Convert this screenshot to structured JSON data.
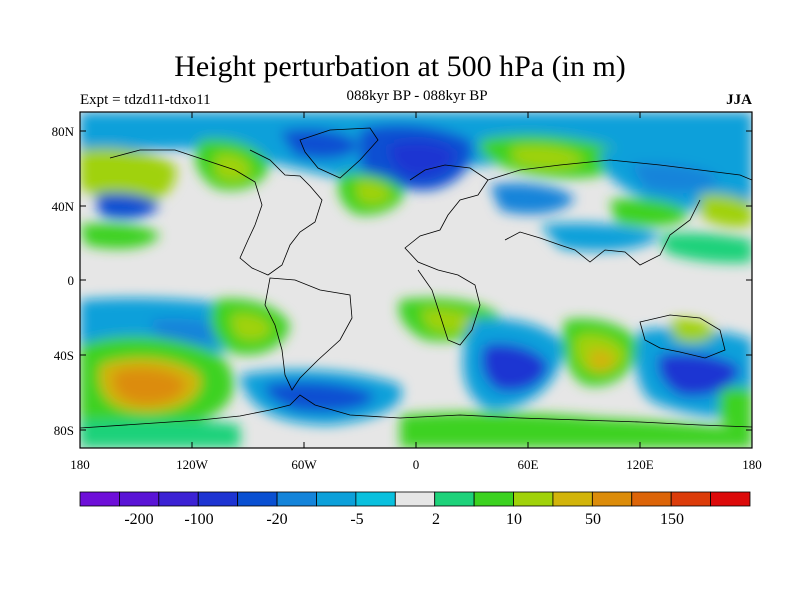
{
  "title": "Height perturbation at 500 hPa (in m)",
  "experiment": "Expt = tdzd11-tdxo11",
  "subtitle": "088kyr BP - 088kyr BP",
  "season": "JJA",
  "map": {
    "projection": "cylindrical equidistant",
    "lat_ticks": [
      "80N",
      "40N",
      "0",
      "40S",
      "80S"
    ],
    "lon_ticks": [
      "180",
      "120W",
      "60W",
      "0",
      "60E",
      "120E",
      "180"
    ],
    "background_color": "#e6e6e6"
  },
  "colorbar": {
    "colors": [
      "#6e0fd8",
      "#5a14d6",
      "#3c22d4",
      "#1e34d2",
      "#0a50d2",
      "#1484da",
      "#0ca0da",
      "#0ac0de",
      "#e6e6e6",
      "#1ed27a",
      "#3cd220",
      "#a0d20a",
      "#d2b40a",
      "#dc8c0a",
      "#dc6408",
      "#dc3c0a",
      "#dc0a0a"
    ],
    "labels": [
      "-200",
      "-100",
      "-20",
      "-5",
      "2",
      "10",
      "50",
      "150"
    ]
  }
}
